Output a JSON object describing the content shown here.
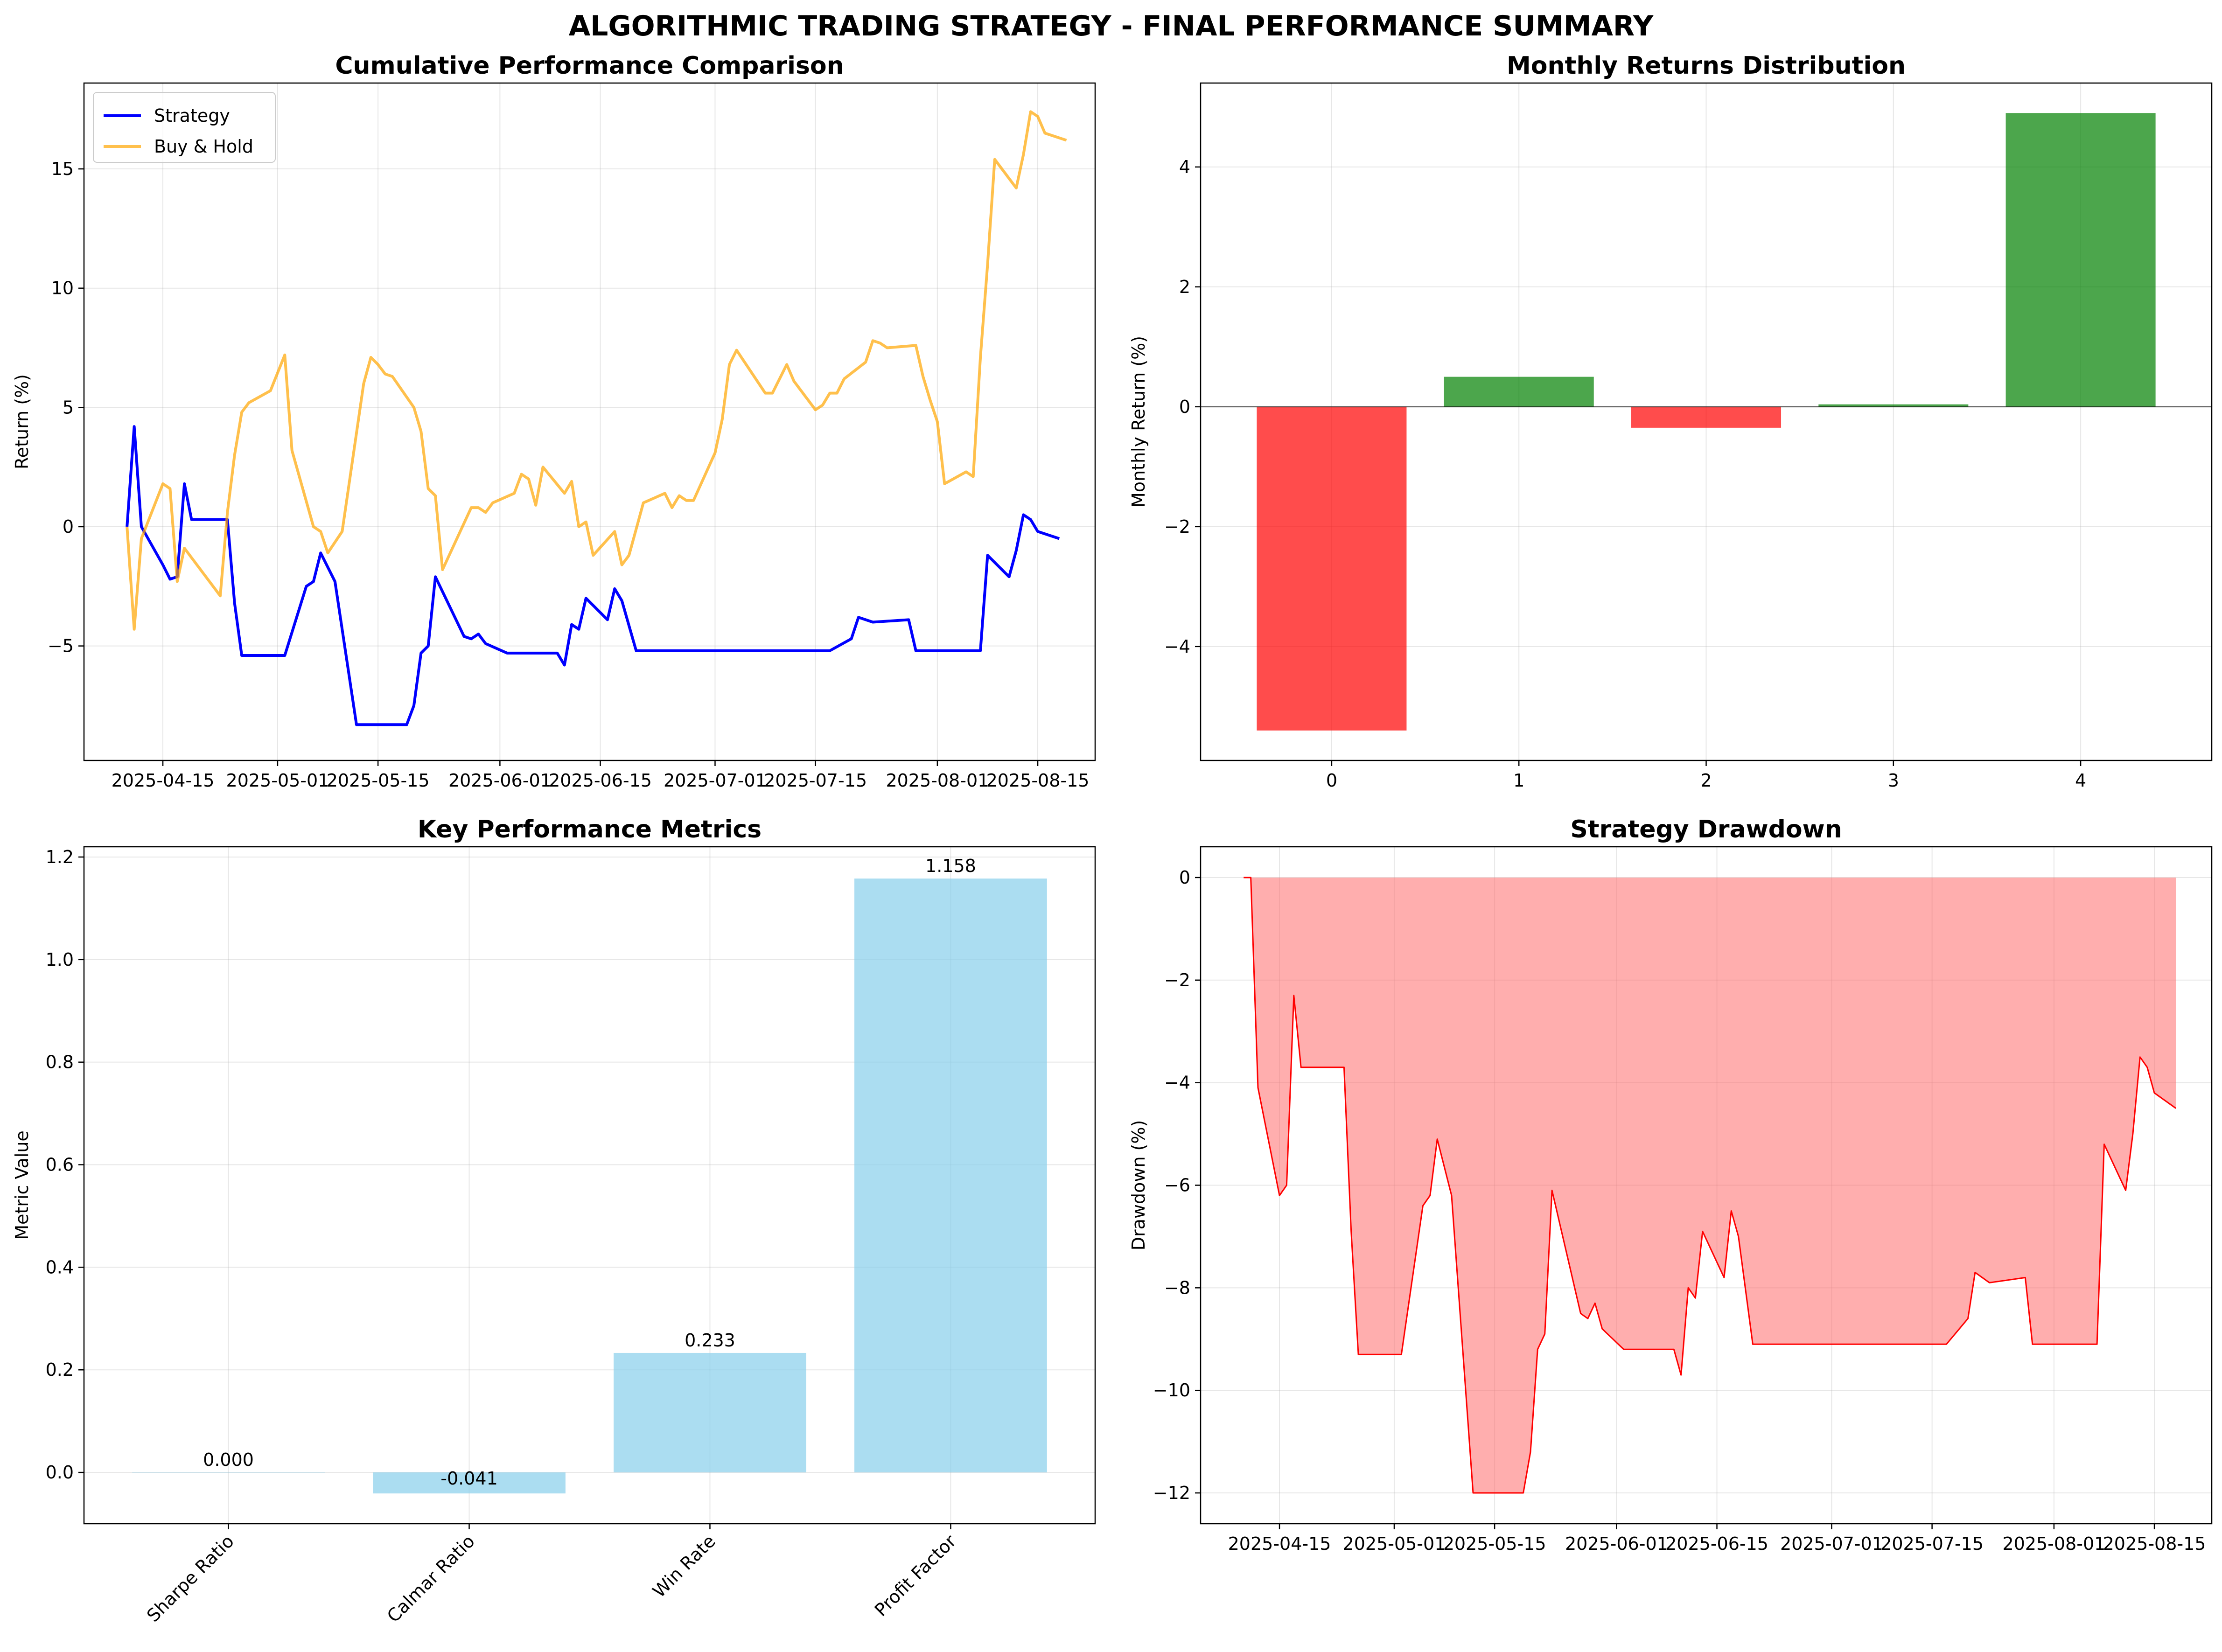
{
  "figure": {
    "suptitle": "ALGORITHMIC TRADING STRATEGY - FINAL PERFORMANCE SUMMARY"
  },
  "chart_data": [
    {
      "type": "line",
      "title": "Cumulative Performance Comparison",
      "xlabel": "",
      "ylabel": "Return (%)",
      "x_ticks": [
        "2025-04-15",
        "2025-05-01",
        "2025-05-15",
        "2025-06-01",
        "2025-06-15",
        "2025-07-01",
        "2025-07-15",
        "2025-08-01",
        "2025-08-15"
      ],
      "xlim": [
        "2025-04-04",
        "2025-08-23"
      ],
      "ylim": [
        -9.8,
        18.6
      ],
      "y_ticks": [
        -5,
        0,
        5,
        10,
        15
      ],
      "y_tick_labels": [
        "−5",
        "0",
        "5",
        "10",
        "15"
      ],
      "grid": true,
      "legend": "upper-left",
      "series": [
        {
          "name": "Strategy",
          "color": "#0000ff",
          "points": [
            [
              "2025-04-10",
              0.0
            ],
            [
              "2025-04-11",
              4.2
            ],
            [
              "2025-04-12",
              0.0
            ],
            [
              "2025-04-15",
              -1.6
            ],
            [
              "2025-04-16",
              -2.2
            ],
            [
              "2025-04-17",
              -2.1
            ],
            [
              "2025-04-18",
              1.8
            ],
            [
              "2025-04-19",
              0.3
            ],
            [
              "2025-04-24",
              0.3
            ],
            [
              "2025-04-25",
              -3.2
            ],
            [
              "2025-04-26",
              -5.4
            ],
            [
              "2025-05-02",
              -5.4
            ],
            [
              "2025-05-05",
              -2.5
            ],
            [
              "2025-05-06",
              -2.3
            ],
            [
              "2025-05-07",
              -1.1
            ],
            [
              "2025-05-09",
              -2.3
            ],
            [
              "2025-05-12",
              -8.3
            ],
            [
              "2025-05-19",
              -8.3
            ],
            [
              "2025-05-20",
              -7.5
            ],
            [
              "2025-05-21",
              -5.3
            ],
            [
              "2025-05-22",
              -5.0
            ],
            [
              "2025-05-23",
              -2.1
            ],
            [
              "2025-05-27",
              -4.6
            ],
            [
              "2025-05-28",
              -4.7
            ],
            [
              "2025-05-29",
              -4.5
            ],
            [
              "2025-05-30",
              -4.9
            ],
            [
              "2025-06-02",
              -5.3
            ],
            [
              "2025-06-09",
              -5.3
            ],
            [
              "2025-06-10",
              -5.8
            ],
            [
              "2025-06-11",
              -4.1
            ],
            [
              "2025-06-12",
              -4.3
            ],
            [
              "2025-06-13",
              -3.0
            ],
            [
              "2025-06-16",
              -3.9
            ],
            [
              "2025-06-17",
              -2.6
            ],
            [
              "2025-06-18",
              -3.1
            ],
            [
              "2025-06-20",
              -5.2
            ],
            [
              "2025-07-17",
              -5.2
            ],
            [
              "2025-07-20",
              -4.7
            ],
            [
              "2025-07-21",
              -3.8
            ],
            [
              "2025-07-23",
              -4.0
            ],
            [
              "2025-07-28",
              -3.9
            ],
            [
              "2025-07-29",
              -5.2
            ],
            [
              "2025-08-07",
              -5.2
            ],
            [
              "2025-08-08",
              -1.2
            ],
            [
              "2025-08-11",
              -2.1
            ],
            [
              "2025-08-12",
              -1.0
            ],
            [
              "2025-08-13",
              0.5
            ],
            [
              "2025-08-14",
              0.3
            ],
            [
              "2025-08-15",
              -0.2
            ],
            [
              "2025-08-18",
              -0.5
            ]
          ]
        },
        {
          "name": "Buy & Hold",
          "color": "#ffa500",
          "points": [
            [
              "2025-04-10",
              0.0
            ],
            [
              "2025-04-11",
              -4.3
            ],
            [
              "2025-04-12",
              -0.5
            ],
            [
              "2025-04-15",
              1.8
            ],
            [
              "2025-04-16",
              1.6
            ],
            [
              "2025-04-17",
              -2.3
            ],
            [
              "2025-04-18",
              -0.9
            ],
            [
              "2025-04-23",
              -2.9
            ],
            [
              "2025-04-24",
              0.6
            ],
            [
              "2025-04-25",
              3.0
            ],
            [
              "2025-04-26",
              4.8
            ],
            [
              "2025-04-27",
              5.2
            ],
            [
              "2025-04-30",
              5.7
            ],
            [
              "2025-05-02",
              7.2
            ],
            [
              "2025-05-03",
              3.2
            ],
            [
              "2025-05-06",
              0.0
            ],
            [
              "2025-05-07",
              -0.2
            ],
            [
              "2025-05-08",
              -1.1
            ],
            [
              "2025-05-10",
              -0.2
            ],
            [
              "2025-05-13",
              6.0
            ],
            [
              "2025-05-14",
              7.1
            ],
            [
              "2025-05-15",
              6.8
            ],
            [
              "2025-05-16",
              6.4
            ],
            [
              "2025-05-17",
              6.3
            ],
            [
              "2025-05-20",
              5.0
            ],
            [
              "2025-05-21",
              4.0
            ],
            [
              "2025-05-22",
              1.6
            ],
            [
              "2025-05-23",
              1.3
            ],
            [
              "2025-05-24",
              -1.8
            ],
            [
              "2025-05-28",
              0.8
            ],
            [
              "2025-05-29",
              0.8
            ],
            [
              "2025-05-30",
              0.6
            ],
            [
              "2025-05-31",
              1.0
            ],
            [
              "2025-06-03",
              1.4
            ],
            [
              "2025-06-04",
              2.2
            ],
            [
              "2025-06-05",
              2.0
            ],
            [
              "2025-06-06",
              0.9
            ],
            [
              "2025-06-07",
              2.5
            ],
            [
              "2025-06-10",
              1.4
            ],
            [
              "2025-06-11",
              1.9
            ],
            [
              "2025-06-12",
              0.0
            ],
            [
              "2025-06-13",
              0.2
            ],
            [
              "2025-06-14",
              -1.2
            ],
            [
              "2025-06-17",
              -0.2
            ],
            [
              "2025-06-18",
              -1.6
            ],
            [
              "2025-06-19",
              -1.2
            ],
            [
              "2025-06-21",
              1.0
            ],
            [
              "2025-06-24",
              1.4
            ],
            [
              "2025-06-25",
              0.8
            ],
            [
              "2025-06-26",
              1.3
            ],
            [
              "2025-06-27",
              1.1
            ],
            [
              "2025-06-28",
              1.1
            ],
            [
              "2025-07-01",
              3.1
            ],
            [
              "2025-07-02",
              4.5
            ],
            [
              "2025-07-03",
              6.8
            ],
            [
              "2025-07-04",
              7.4
            ],
            [
              "2025-07-08",
              5.6
            ],
            [
              "2025-07-09",
              5.6
            ],
            [
              "2025-07-11",
              6.8
            ],
            [
              "2025-07-12",
              6.1
            ],
            [
              "2025-07-15",
              4.9
            ],
            [
              "2025-07-16",
              5.1
            ],
            [
              "2025-07-17",
              5.6
            ],
            [
              "2025-07-18",
              5.6
            ],
            [
              "2025-07-19",
              6.2
            ],
            [
              "2025-07-22",
              6.9
            ],
            [
              "2025-07-23",
              7.8
            ],
            [
              "2025-07-24",
              7.7
            ],
            [
              "2025-07-25",
              7.5
            ],
            [
              "2025-07-29",
              7.6
            ],
            [
              "2025-07-30",
              6.3
            ],
            [
              "2025-07-31",
              5.3
            ],
            [
              "2025-08-01",
              4.4
            ],
            [
              "2025-08-02",
              1.8
            ],
            [
              "2025-08-05",
              2.3
            ],
            [
              "2025-08-06",
              2.1
            ],
            [
              "2025-08-07",
              7.1
            ],
            [
              "2025-08-08",
              11.0
            ],
            [
              "2025-08-09",
              15.4
            ],
            [
              "2025-08-12",
              14.2
            ],
            [
              "2025-08-13",
              15.6
            ],
            [
              "2025-08-14",
              17.4
            ],
            [
              "2025-08-15",
              17.2
            ],
            [
              "2025-08-16",
              16.5
            ],
            [
              "2025-08-19",
              16.2
            ]
          ]
        }
      ]
    },
    {
      "type": "bar",
      "title": "Monthly Returns Distribution",
      "xlabel": "",
      "ylabel": "Monthly Return (%)",
      "categories": [
        "0",
        "1",
        "2",
        "3",
        "4"
      ],
      "values": [
        -5.4,
        0.5,
        -0.35,
        0.04,
        4.9
      ],
      "bar_colors": [
        "#ff0000",
        "#008000",
        "#ff0000",
        "#008000",
        "#008000"
      ],
      "xlim": [
        -0.7,
        4.7
      ],
      "ylim": [
        -5.9,
        5.4
      ],
      "y_ticks": [
        -4,
        -2,
        0,
        2,
        4
      ],
      "y_tick_labels": [
        "−4",
        "−2",
        "0",
        "2",
        "4"
      ],
      "zero_line": true,
      "grid": true
    },
    {
      "type": "bar",
      "title": "Key Performance Metrics",
      "xlabel": "",
      "ylabel": "Metric Value",
      "categories": [
        "Sharpe Ratio",
        "Calmar Ratio",
        "Win Rate",
        "Profit Factor"
      ],
      "values": [
        0.0,
        -0.041,
        0.233,
        1.158
      ],
      "value_labels": [
        "0.000",
        "-0.041",
        "0.233",
        "1.158"
      ],
      "bar_color": "#87ceeb",
      "xlim": [
        -0.6,
        3.6
      ],
      "ylim": [
        -0.1,
        1.22
      ],
      "y_ticks": [
        0.0,
        0.2,
        0.4,
        0.6,
        0.8,
        1.0,
        1.2
      ],
      "y_tick_labels": [
        "0.0",
        "0.2",
        "0.4",
        "0.6",
        "0.8",
        "1.0",
        "1.2"
      ],
      "grid": true
    },
    {
      "type": "area",
      "title": "Strategy Drawdown",
      "xlabel": "",
      "ylabel": "Drawdown (%)",
      "x_ticks": [
        "2025-04-15",
        "2025-05-01",
        "2025-05-15",
        "2025-06-01",
        "2025-06-15",
        "2025-07-01",
        "2025-07-15",
        "2025-08-01",
        "2025-08-15"
      ],
      "xlim": [
        "2025-04-04",
        "2025-08-23"
      ],
      "ylim": [
        -12.6,
        0.6
      ],
      "y_ticks": [
        -12,
        -10,
        -8,
        -6,
        -4,
        -2,
        0
      ],
      "y_tick_labels": [
        "−12",
        "−10",
        "−8",
        "−6",
        "−4",
        "−2",
        "0"
      ],
      "line_color": "#ff0000",
      "fill_color": "#ff6b6b",
      "grid": true,
      "points": [
        [
          "2025-04-10",
          0.0
        ],
        [
          "2025-04-11",
          0.0
        ],
        [
          "2025-04-12",
          -4.1
        ],
        [
          "2025-04-15",
          -6.2
        ],
        [
          "2025-04-16",
          -6.0
        ],
        [
          "2025-04-17",
          -2.3
        ],
        [
          "2025-04-18",
          -3.7
        ],
        [
          "2025-04-24",
          -3.7
        ],
        [
          "2025-04-25",
          -6.9
        ],
        [
          "2025-04-26",
          -9.3
        ],
        [
          "2025-05-02",
          -9.3
        ],
        [
          "2025-05-05",
          -6.4
        ],
        [
          "2025-05-06",
          -6.2
        ],
        [
          "2025-05-07",
          -5.1
        ],
        [
          "2025-05-09",
          -6.2
        ],
        [
          "2025-05-12",
          -12.0
        ],
        [
          "2025-05-19",
          -12.0
        ],
        [
          "2025-05-20",
          -11.2
        ],
        [
          "2025-05-21",
          -9.2
        ],
        [
          "2025-05-22",
          -8.9
        ],
        [
          "2025-05-23",
          -6.1
        ],
        [
          "2025-05-27",
          -8.5
        ],
        [
          "2025-05-28",
          -8.6
        ],
        [
          "2025-05-29",
          -8.3
        ],
        [
          "2025-05-30",
          -8.8
        ],
        [
          "2025-06-02",
          -9.2
        ],
        [
          "2025-06-09",
          -9.2
        ],
        [
          "2025-06-10",
          -9.7
        ],
        [
          "2025-06-11",
          -8.0
        ],
        [
          "2025-06-12",
          -8.2
        ],
        [
          "2025-06-13",
          -6.9
        ],
        [
          "2025-06-16",
          -7.8
        ],
        [
          "2025-06-17",
          -6.5
        ],
        [
          "2025-06-18",
          -7.0
        ],
        [
          "2025-06-20",
          -9.1
        ],
        [
          "2025-07-17",
          -9.1
        ],
        [
          "2025-07-20",
          -8.6
        ],
        [
          "2025-07-21",
          -7.7
        ],
        [
          "2025-07-23",
          -7.9
        ],
        [
          "2025-07-28",
          -7.8
        ],
        [
          "2025-07-29",
          -9.1
        ],
        [
          "2025-08-07",
          -9.1
        ],
        [
          "2025-08-08",
          -5.2
        ],
        [
          "2025-08-11",
          -6.1
        ],
        [
          "2025-08-12",
          -5.0
        ],
        [
          "2025-08-13",
          -3.5
        ],
        [
          "2025-08-14",
          -3.7
        ],
        [
          "2025-08-15",
          -4.2
        ],
        [
          "2025-08-18",
          -4.5
        ]
      ]
    }
  ]
}
